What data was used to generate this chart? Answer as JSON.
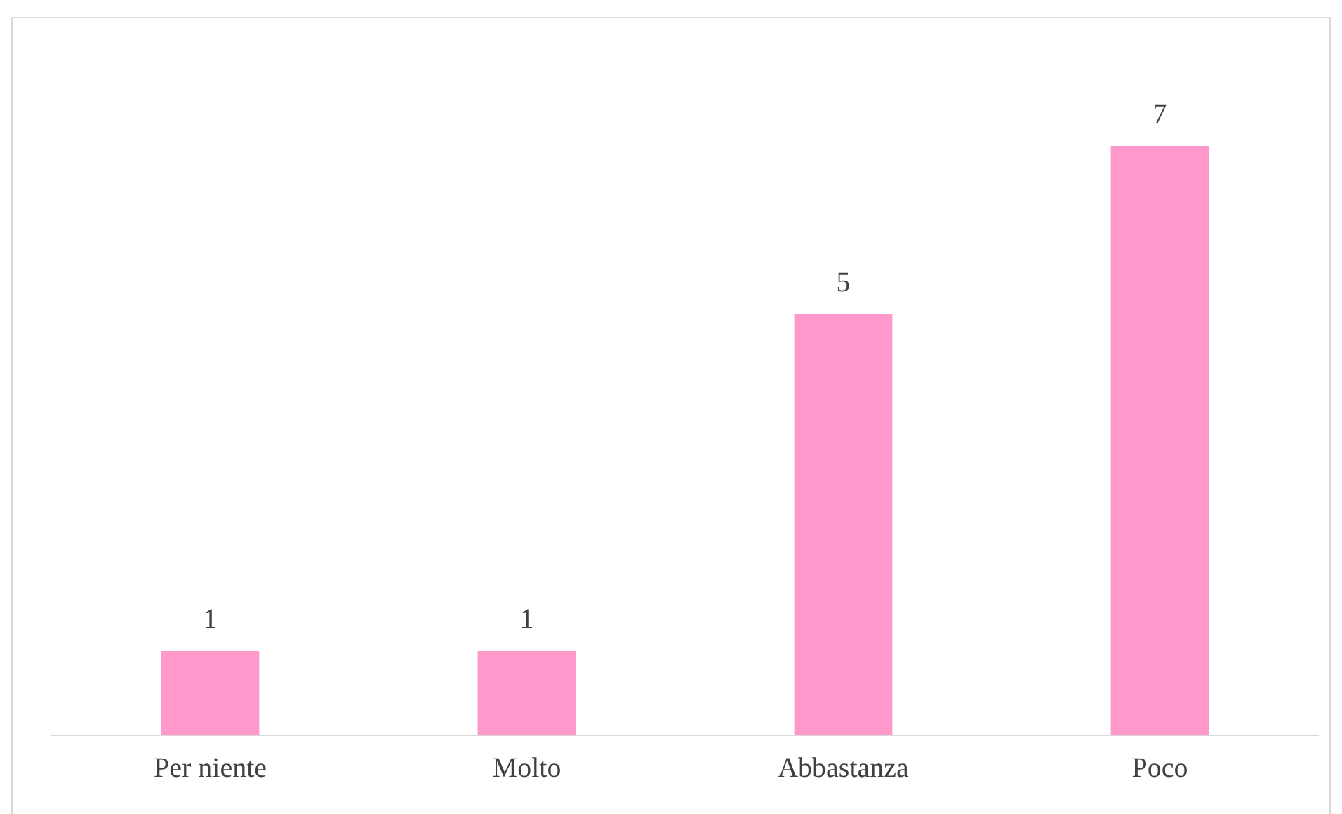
{
  "chart_data": {
    "type": "bar",
    "categories": [
      "Per niente",
      "Molto",
      "Abbastanza",
      "Poco"
    ],
    "values": [
      1,
      1,
      5,
      7
    ],
    "color": "#ff99cc",
    "data_labels": true,
    "grid": false,
    "legend": false
  }
}
